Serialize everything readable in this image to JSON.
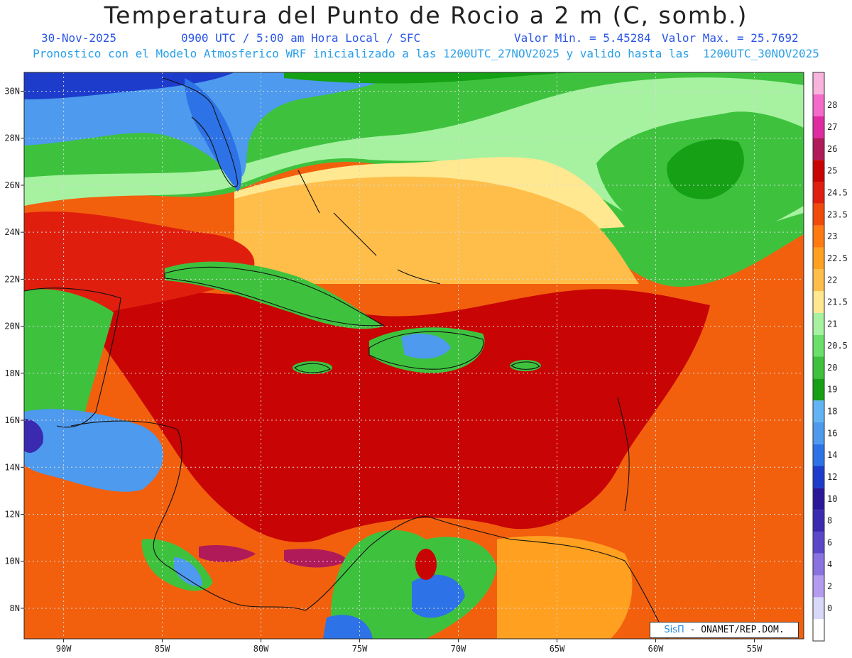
{
  "title": "Temperatura del Punto de Rocio a 2 m (C, somb.)",
  "date": "30-Nov-2025",
  "time_info": "0900 UTC / 5:00 am Hora Local / SFC",
  "min_value": "Valor Min. = 5.45284",
  "max_value": "Valor Max. = 25.7692",
  "model_info": "Pronostico con el Modelo Atmosferico WRF inicializado a las 1200UTC_27NOV2025 y valido hasta las  1200UTC_30NOV2025",
  "credit": {
    "logo": "SisΠ",
    "text": " - ONAMET/REP.DOM."
  },
  "map": {
    "lon_range": [
      -92,
      -52.5
    ],
    "lat_range": [
      6.7,
      30.8
    ],
    "lat_ticks": [
      "30N",
      "28N",
      "26N",
      "24N",
      "22N",
      "20N",
      "18N",
      "16N",
      "14N",
      "12N",
      "10N",
      "8N"
    ],
    "lat_values": [
      30,
      28,
      26,
      24,
      22,
      20,
      18,
      16,
      14,
      12,
      10,
      8
    ],
    "lon_ticks": [
      "90W",
      "85W",
      "80W",
      "75W",
      "70W",
      "65W",
      "60W",
      "55W"
    ],
    "lon_values": [
      -90,
      -85,
      -80,
      -75,
      -70,
      -65,
      -60,
      -55
    ]
  },
  "colorbar": {
    "labels": [
      "0",
      "2",
      "4",
      "6",
      "8",
      "10",
      "12",
      "14",
      "16",
      "18",
      "19",
      "20",
      "20.5",
      "21",
      "21.5",
      "22",
      "22.5",
      "23",
      "23.5",
      "24.5",
      "25",
      "26",
      "27",
      "28"
    ],
    "colors": [
      "#ffffff",
      "#d8d8f8",
      "#b49bf0",
      "#8a72e0",
      "#5a48c8",
      "#3a2ab0",
      "#2a1898",
      "#1d3ccc",
      "#2d72e6",
      "#4d9aee",
      "#62b4f4",
      "#15a015",
      "#3ec23e",
      "#6ae06a",
      "#a6f2a0",
      "#ffe890",
      "#ffbe4a",
      "#ffa020",
      "#ff7a10",
      "#f24a0a",
      "#e01e0e",
      "#c80404",
      "#b01a58",
      "#e02aa0",
      "#f46ac8",
      "#f8b4dc"
    ]
  }
}
